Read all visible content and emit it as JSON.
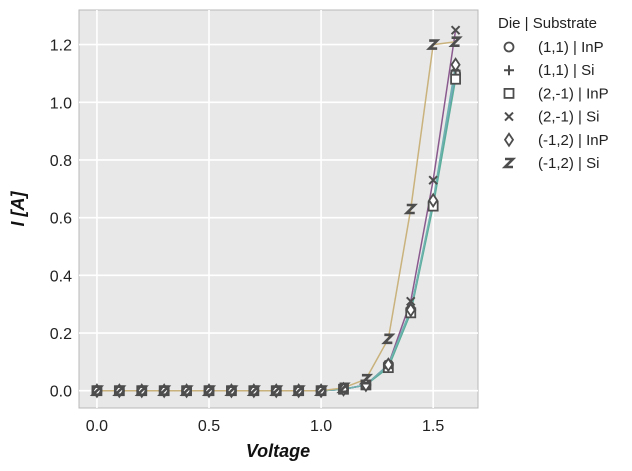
{
  "chart_data": {
    "type": "line",
    "title": "",
    "xlabel": "Voltage",
    "ylabel": "I [A]",
    "xlim": [
      -0.08,
      1.7
    ],
    "ylim": [
      -0.06,
      1.32
    ],
    "xticks": [
      0.0,
      0.5,
      1.0,
      1.5
    ],
    "xtick_labels": [
      "0.0",
      "0.5",
      "1.0",
      "1.5"
    ],
    "yticks": [
      0.0,
      0.2,
      0.4,
      0.6,
      0.8,
      1.0,
      1.2
    ],
    "ytick_labels": [
      "0.0",
      "0.2",
      "0.4",
      "0.6",
      "0.8",
      "1.0",
      "1.2"
    ],
    "grid": true,
    "background": "#e8e8e8",
    "marker_color": "#4d4d4d",
    "legend": {
      "title": "Die | Substrate",
      "placement": "outside-right-top"
    },
    "x": [
      0.0,
      0.1,
      0.2,
      0.3,
      0.4,
      0.5,
      0.6,
      0.7,
      0.8,
      0.9,
      1.0,
      1.1,
      1.2,
      1.3,
      1.4,
      1.5,
      1.6
    ],
    "series": [
      {
        "name": "(1,1) | InP",
        "marker": "circle",
        "color": "#4c9fa8",
        "values": [
          0,
          0,
          0,
          0,
          0,
          0,
          0,
          0,
          0,
          0,
          0,
          0.005,
          0.02,
          0.09,
          0.28,
          0.65,
          1.1
        ]
      },
      {
        "name": "(1,1) | Si",
        "marker": "plus",
        "color": "#7a9fc7",
        "values": [
          0,
          0,
          0,
          0,
          0,
          0,
          0,
          0,
          0,
          0,
          0,
          0.005,
          0.02,
          0.09,
          0.28,
          0.65,
          1.11
        ]
      },
      {
        "name": "(2,-1) | InP",
        "marker": "square",
        "color": "#5aae9a",
        "values": [
          0,
          0,
          0,
          0,
          0,
          0,
          0,
          0,
          0,
          0,
          0,
          0.005,
          0.02,
          0.08,
          0.27,
          0.64,
          1.08
        ]
      },
      {
        "name": "(2,-1) | Si",
        "marker": "x",
        "color": "#8a5a8e",
        "values": [
          0,
          0,
          0,
          0,
          0,
          0,
          0,
          0,
          0,
          0,
          0,
          0.005,
          0.02,
          0.09,
          0.31,
          0.73,
          1.25
        ]
      },
      {
        "name": "(-1,2) | InP",
        "marker": "diamond",
        "color": "#6fb3b0",
        "values": [
          0,
          0,
          0,
          0,
          0,
          0,
          0,
          0,
          0,
          0,
          0,
          0.005,
          0.02,
          0.09,
          0.28,
          0.66,
          1.13
        ]
      },
      {
        "name": "(-1,2) | Si",
        "marker": "z",
        "color": "#c9b27c",
        "values": [
          0,
          0,
          0,
          0,
          0,
          0,
          0,
          0,
          0,
          0,
          0,
          0.01,
          0.04,
          0.18,
          0.63,
          1.2,
          1.21
        ]
      }
    ]
  }
}
